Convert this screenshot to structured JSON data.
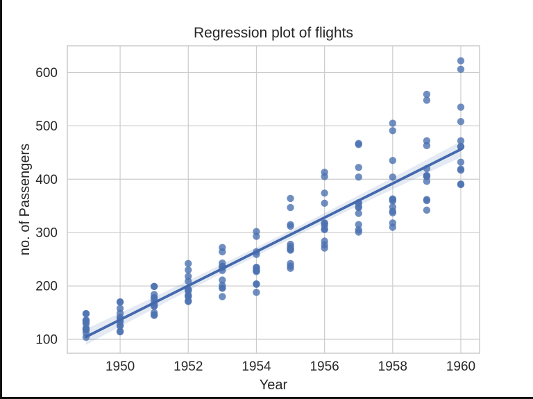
{
  "chart_data": {
    "type": "scatter",
    "title": "Regression plot of flights",
    "xlabel": "Year",
    "ylabel": "no. of Passengers",
    "x_ticks": [
      1950,
      1952,
      1954,
      1956,
      1958,
      1960
    ],
    "y_ticks": [
      100,
      200,
      300,
      400,
      500,
      600
    ],
    "xlim": [
      1948.45,
      1960.55
    ],
    "ylim": [
      74,
      650
    ],
    "grid": true,
    "legend": "none",
    "series": [
      {
        "x": 1949,
        "values": [
          112,
          118,
          132,
          129,
          121,
          135,
          148,
          148,
          136,
          119,
          104,
          118
        ]
      },
      {
        "x": 1950,
        "values": [
          115,
          126,
          141,
          135,
          125,
          149,
          170,
          170,
          158,
          133,
          114,
          140
        ]
      },
      {
        "x": 1951,
        "values": [
          145,
          150,
          178,
          163,
          172,
          178,
          199,
          199,
          184,
          162,
          146,
          166
        ]
      },
      {
        "x": 1952,
        "values": [
          171,
          180,
          193,
          181,
          183,
          218,
          230,
          242,
          209,
          191,
          172,
          194
        ]
      },
      {
        "x": 1953,
        "values": [
          196,
          196,
          236,
          235,
          229,
          243,
          264,
          272,
          237,
          211,
          180,
          201
        ]
      },
      {
        "x": 1954,
        "values": [
          204,
          188,
          235,
          227,
          234,
          264,
          302,
          293,
          259,
          229,
          203,
          229
        ]
      },
      {
        "x": 1955,
        "values": [
          242,
          233,
          267,
          269,
          270,
          315,
          364,
          347,
          312,
          274,
          237,
          278
        ]
      },
      {
        "x": 1956,
        "values": [
          284,
          277,
          317,
          313,
          318,
          374,
          413,
          405,
          355,
          306,
          271,
          306
        ]
      },
      {
        "x": 1957,
        "values": [
          315,
          301,
          356,
          348,
          355,
          422,
          465,
          467,
          404,
          347,
          305,
          336
        ]
      },
      {
        "x": 1958,
        "values": [
          340,
          318,
          362,
          348,
          363,
          435,
          491,
          505,
          404,
          359,
          310,
          337
        ]
      },
      {
        "x": 1959,
        "values": [
          360,
          342,
          406,
          396,
          420,
          472,
          548,
          559,
          463,
          407,
          362,
          405
        ]
      },
      {
        "x": 1960,
        "values": [
          417,
          391,
          419,
          461,
          472,
          535,
          622,
          606,
          508,
          461,
          390,
          432
        ]
      }
    ],
    "regression": {
      "fit": "linear-least-squares",
      "x_start": 1949,
      "x_end": 1960,
      "ci_half_width_center": 8,
      "ci_half_width_edge": 15
    },
    "colors": {
      "marker": "#4C72B0",
      "line": "#4468AC",
      "band": "#4C72B0",
      "grid": "#cccccc",
      "spine": "#cccccc",
      "text": "#262626",
      "background": "#ffffff"
    }
  }
}
